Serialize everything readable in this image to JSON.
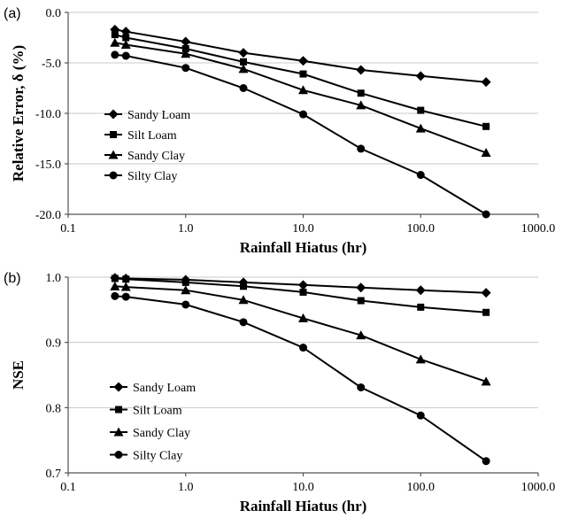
{
  "chart_data": [
    {
      "type": "line",
      "panel_label": "(a)",
      "xlabel": "Rainfall Hiatus (hr)",
      "ylabel": "Relative Error, δ (%)",
      "xscale": "log",
      "xlim": [
        0.1,
        1000
      ],
      "ylim": [
        -20,
        0
      ],
      "xticks": [
        0.1,
        1,
        10,
        100,
        1000
      ],
      "xtick_labels": [
        "0.1",
        "1.0",
        "10.0",
        "100.0",
        "1000.0"
      ],
      "yticks": [
        0,
        -5,
        -10,
        -15,
        -20
      ],
      "ytick_labels": [
        "0.0",
        "-5.0",
        "-10.0",
        "-15.0",
        "-20.0"
      ],
      "grid": "horizontal",
      "legend_position": "middle-left",
      "x": [
        0.25,
        0.31,
        1,
        3.1,
        10,
        31,
        100,
        360
      ],
      "series": [
        {
          "name": "Sandy Loam",
          "marker": "diamond",
          "values": [
            -1.7,
            -1.9,
            -2.9,
            -4.0,
            -4.8,
            -5.7,
            -6.3,
            -6.9
          ]
        },
        {
          "name": "Silt Loam",
          "marker": "square",
          "values": [
            -2.2,
            -2.5,
            -3.6,
            -4.9,
            -6.1,
            -8.0,
            -9.7,
            -11.3
          ]
        },
        {
          "name": "Sandy Clay",
          "marker": "triangle",
          "values": [
            -3.0,
            -3.2,
            -4.1,
            -5.6,
            -7.7,
            -9.2,
            -11.5,
            -13.9
          ]
        },
        {
          "name": "Silty Clay",
          "marker": "circle",
          "values": [
            -4.2,
            -4.3,
            -5.5,
            -7.5,
            -10.1,
            -13.5,
            -16.1,
            -20.0
          ]
        }
      ]
    },
    {
      "type": "line",
      "panel_label": "(b)",
      "xlabel": "Rainfall Hiatus (hr)",
      "ylabel": "NSE",
      "xscale": "log",
      "xlim": [
        0.1,
        1000
      ],
      "ylim": [
        0.7,
        1.0
      ],
      "xticks": [
        0.1,
        1,
        10,
        100,
        1000
      ],
      "xtick_labels": [
        "0.1",
        "1.0",
        "10.0",
        "100.0",
        "1000.0"
      ],
      "yticks": [
        1.0,
        0.9,
        0.8,
        0.7
      ],
      "ytick_labels": [
        "1.0",
        "0.9",
        "0.8",
        "0.7"
      ],
      "grid": "horizontal",
      "legend_position": "bottom-left",
      "x": [
        0.25,
        0.31,
        1,
        3.1,
        10,
        31,
        100,
        360
      ],
      "series": [
        {
          "name": "Sandy Loam",
          "marker": "diamond",
          "values": [
            0.999,
            0.998,
            0.996,
            0.992,
            0.988,
            0.984,
            0.98,
            0.976
          ]
        },
        {
          "name": "Silt Loam",
          "marker": "square",
          "values": [
            0.998,
            0.997,
            0.992,
            0.986,
            0.977,
            0.964,
            0.954,
            0.946
          ]
        },
        {
          "name": "Sandy Clay",
          "marker": "triangle",
          "values": [
            0.986,
            0.985,
            0.98,
            0.965,
            0.937,
            0.911,
            0.874,
            0.84
          ]
        },
        {
          "name": "Silty Clay",
          "marker": "circle",
          "values": [
            0.971,
            0.97,
            0.958,
            0.931,
            0.892,
            0.831,
            0.788,
            0.718
          ]
        }
      ]
    }
  ]
}
